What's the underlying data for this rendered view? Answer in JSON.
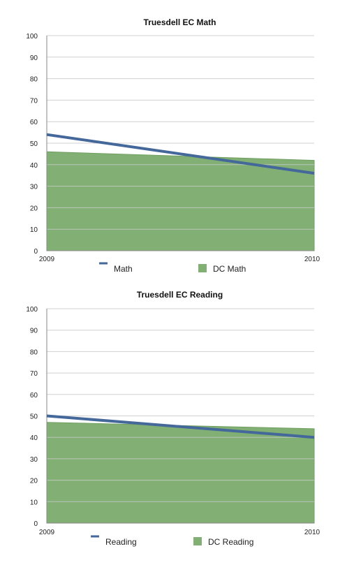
{
  "colors": {
    "line": "#44689a",
    "area": "#82b074",
    "area_stroke": "#6f9f60",
    "grid": "#c8c8c8"
  },
  "chart_data": [
    {
      "type": "line",
      "title": "Truesdell EC Math",
      "x": [
        "2009",
        "2010"
      ],
      "ylim": [
        0,
        100
      ],
      "yticks": [
        0,
        10,
        20,
        30,
        40,
        50,
        60,
        70,
        80,
        90,
        100
      ],
      "grid": true,
      "series": [
        {
          "name": "Math",
          "kind": "line",
          "values": [
            54,
            36
          ]
        },
        {
          "name": "DC Math",
          "kind": "area",
          "values": [
            46,
            42
          ]
        }
      ],
      "legend": {
        "placement": "bottom"
      }
    },
    {
      "type": "line",
      "title": "Truesdell EC Reading",
      "x": [
        "2009",
        "2010"
      ],
      "ylim": [
        0,
        100
      ],
      "yticks": [
        0,
        10,
        20,
        30,
        40,
        50,
        60,
        70,
        80,
        90,
        100
      ],
      "grid": true,
      "series": [
        {
          "name": "Reading",
          "kind": "line",
          "values": [
            50,
            40
          ]
        },
        {
          "name": "DC Reading",
          "kind": "area",
          "values": [
            47,
            44
          ]
        }
      ],
      "legend": {
        "placement": "bottom"
      }
    }
  ]
}
